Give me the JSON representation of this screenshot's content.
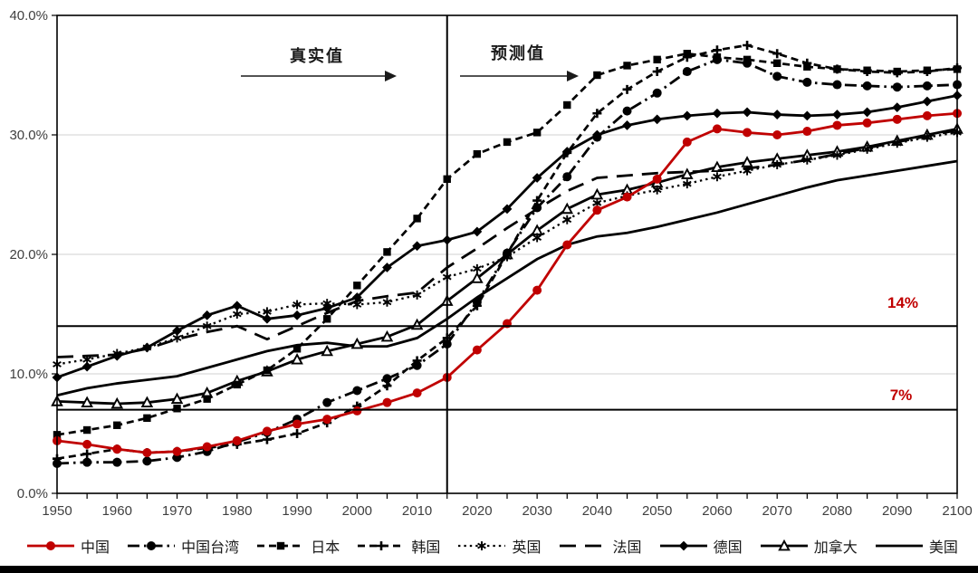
{
  "chart_data": {
    "type": "line",
    "title": "",
    "xlabel": "",
    "ylabel": "",
    "xlim": [
      1950,
      2100
    ],
    "ylim": [
      0,
      40
    ],
    "grid": "horizontal",
    "legend_position": "bottom",
    "x": [
      1950,
      1955,
      1960,
      1965,
      1970,
      1975,
      1980,
      1985,
      1990,
      1995,
      2000,
      2005,
      2010,
      2015,
      2020,
      2025,
      2030,
      2035,
      2040,
      2045,
      2050,
      2055,
      2060,
      2065,
      2070,
      2075,
      2080,
      2085,
      2090,
      2095,
      2100
    ],
    "x_tick_labels": [
      "1950",
      "1960",
      "1970",
      "1980",
      "1990",
      "2000",
      "2010",
      "2020",
      "2030",
      "2040",
      "2050",
      "2060",
      "2070",
      "2080",
      "2090",
      "2100"
    ],
    "y_ticks": [
      {
        "v": 0,
        "label": "0.0%"
      },
      {
        "v": 10,
        "label": "10.0%"
      },
      {
        "v": 20,
        "label": "20.0%"
      },
      {
        "v": 30,
        "label": "30.0%"
      },
      {
        "v": 40,
        "label": "40.0%"
      }
    ],
    "grid_y": [
      10,
      20,
      30
    ],
    "divider_year": 2015,
    "annotations": {
      "actual": "真实值",
      "forecast": "预测值"
    },
    "reference_lines": [
      {
        "value": 14,
        "label": "14%",
        "color": "#c00000"
      },
      {
        "value": 7,
        "label": "7%",
        "color": "#c00000"
      }
    ],
    "colors": {
      "accent_red": "#c00000",
      "line_black": "#000000",
      "grid_gray": "#d9d9d9",
      "axis_text": "#3f3f3f"
    },
    "series": [
      {
        "name": "中国",
        "color": "#c00000",
        "line": "solid",
        "marker": "circle",
        "values": [
          4.4,
          4.1,
          3.7,
          3.4,
          3.5,
          3.9,
          4.4,
          5.2,
          5.8,
          6.2,
          6.9,
          7.6,
          8.4,
          9.7,
          12.0,
          14.2,
          17.0,
          20.8,
          23.7,
          24.8,
          26.3,
          29.4,
          30.5,
          30.2,
          30.0,
          30.3,
          30.8,
          31.0,
          31.3,
          31.6,
          31.8
        ]
      },
      {
        "name": "中国台湾",
        "color": "#000000",
        "line": "dash-dot",
        "marker": "circle",
        "values": [
          2.5,
          2.6,
          2.6,
          2.7,
          3.0,
          3.5,
          4.3,
          5.1,
          6.2,
          7.6,
          8.6,
          9.6,
          10.7,
          12.5,
          16.0,
          20.1,
          23.9,
          26.5,
          29.8,
          32.0,
          33.5,
          35.3,
          36.3,
          36.0,
          34.9,
          34.4,
          34.2,
          34.1,
          34.0,
          34.1,
          34.2
        ]
      },
      {
        "name": "日本",
        "color": "#000000",
        "line": "dash",
        "marker": "square",
        "values": [
          4.9,
          5.3,
          5.7,
          6.3,
          7.1,
          7.9,
          9.1,
          10.3,
          12.1,
          14.6,
          17.4,
          20.2,
          23.0,
          26.3,
          28.4,
          29.4,
          30.2,
          32.5,
          35.0,
          35.8,
          36.3,
          36.8,
          36.5,
          36.3,
          36.0,
          35.7,
          35.5,
          35.4,
          35.3,
          35.4,
          35.5
        ]
      },
      {
        "name": "韩国",
        "color": "#000000",
        "line": "dash",
        "marker": "plus",
        "values": [
          2.9,
          3.3,
          3.7,
          3.4,
          3.5,
          3.8,
          4.1,
          4.5,
          5.0,
          5.9,
          7.3,
          9.0,
          11.1,
          13.0,
          15.7,
          20.0,
          24.5,
          28.5,
          31.8,
          33.8,
          35.3,
          36.5,
          37.1,
          37.5,
          36.8,
          36.0,
          35.5,
          35.3,
          35.2,
          35.3,
          35.6
        ]
      },
      {
        "name": "英国",
        "color": "#000000",
        "line": "dot",
        "marker": "asterisk",
        "values": [
          10.8,
          11.2,
          11.7,
          12.2,
          13.0,
          14.0,
          15.0,
          15.2,
          15.8,
          15.9,
          15.8,
          16.0,
          16.6,
          18.1,
          18.8,
          19.8,
          21.4,
          22.9,
          24.3,
          24.9,
          25.4,
          25.9,
          26.5,
          27.0,
          27.5,
          27.9,
          28.3,
          28.8,
          29.3,
          29.8,
          30.2
        ]
      },
      {
        "name": "法国",
        "color": "#000000",
        "line": "long-dash",
        "marker": "none",
        "values": [
          11.4,
          11.5,
          11.6,
          12.1,
          12.9,
          13.5,
          14.0,
          12.9,
          14.0,
          15.1,
          16.1,
          16.5,
          16.8,
          18.9,
          20.5,
          22.2,
          23.8,
          25.3,
          26.4,
          26.6,
          26.8,
          26.9,
          27.0,
          27.2,
          27.5,
          27.9,
          28.4,
          28.9,
          29.4,
          29.9,
          30.4
        ]
      },
      {
        "name": "德国",
        "color": "#000000",
        "line": "solid",
        "marker": "diamond",
        "values": [
          9.7,
          10.6,
          11.5,
          12.2,
          13.6,
          14.9,
          15.7,
          14.6,
          14.9,
          15.5,
          16.4,
          18.9,
          20.7,
          21.2,
          21.9,
          23.8,
          26.4,
          28.6,
          30.0,
          30.8,
          31.3,
          31.6,
          31.8,
          31.9,
          31.7,
          31.6,
          31.7,
          31.9,
          32.3,
          32.8,
          33.3
        ]
      },
      {
        "name": "加拿大",
        "color": "#000000",
        "line": "solid",
        "marker": "triangle-open",
        "values": [
          7.7,
          7.6,
          7.5,
          7.6,
          7.9,
          8.4,
          9.4,
          10.2,
          11.2,
          11.9,
          12.5,
          13.1,
          14.1,
          16.1,
          18.0,
          20.0,
          22.0,
          23.8,
          25.0,
          25.4,
          26.0,
          26.7,
          27.3,
          27.7,
          28.0,
          28.3,
          28.6,
          29.0,
          29.5,
          30.0,
          30.5
        ]
      },
      {
        "name": "美国",
        "color": "#000000",
        "line": "solid",
        "marker": "none",
        "values": [
          8.2,
          8.8,
          9.2,
          9.5,
          9.8,
          10.5,
          11.2,
          11.9,
          12.4,
          12.6,
          12.3,
          12.3,
          13.0,
          14.6,
          16.4,
          18.0,
          19.6,
          20.8,
          21.5,
          21.8,
          22.3,
          22.9,
          23.5,
          24.2,
          24.9,
          25.6,
          26.2,
          26.6,
          27.0,
          27.4,
          27.8
        ]
      }
    ]
  }
}
